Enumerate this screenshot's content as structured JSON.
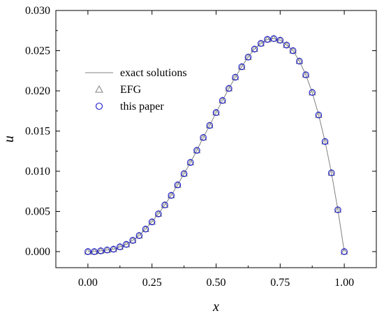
{
  "chart_data": {
    "type": "line",
    "title": "",
    "xlabel": "x",
    "ylabel": "u",
    "xlim": [
      -0.125,
      1.125
    ],
    "ylim": [
      -0.002,
      0.03
    ],
    "x_ticks": [
      0.0,
      0.25,
      0.5,
      0.75,
      1.0
    ],
    "x_tick_labels": [
      "0.00",
      "0.25",
      "0.50",
      "0.75",
      "1.00"
    ],
    "y_ticks": [
      0.0,
      0.005,
      0.01,
      0.015,
      0.02,
      0.025,
      0.03
    ],
    "y_tick_labels": [
      "0.000",
      "0.005",
      "0.010",
      "0.015",
      "0.020",
      "0.025",
      "0.030"
    ],
    "grid": false,
    "legend_position": "upper-left",
    "series": [
      {
        "name": "exact solutions",
        "style": "line",
        "color": "#808080",
        "x": [
          0,
          0.025,
          0.05,
          0.075,
          0.1,
          0.125,
          0.15,
          0.175,
          0.2,
          0.225,
          0.25,
          0.275,
          0.3,
          0.325,
          0.35,
          0.375,
          0.4,
          0.425,
          0.45,
          0.475,
          0.5,
          0.525,
          0.55,
          0.575,
          0.6,
          0.625,
          0.65,
          0.675,
          0.7,
          0.725,
          0.75,
          0.775,
          0.8,
          0.825,
          0.85,
          0.875,
          0.9,
          0.925,
          0.95,
          0.975,
          1.0
        ],
        "y": [
          0,
          0.0,
          0.0001,
          0.0002,
          0.0003,
          0.0006,
          0.0009,
          0.0014,
          0.002,
          0.0028,
          0.0037,
          0.0047,
          0.0058,
          0.007,
          0.0083,
          0.0097,
          0.0111,
          0.0126,
          0.0142,
          0.0157,
          0.0173,
          0.0188,
          0.0203,
          0.0217,
          0.023,
          0.0242,
          0.0252,
          0.0259,
          0.0264,
          0.0265,
          0.0263,
          0.0257,
          0.025,
          0.0237,
          0.022,
          0.0198,
          0.017,
          0.0137,
          0.0098,
          0.0052,
          0.0
        ]
      },
      {
        "name": "EFG",
        "style": "marker-triangle",
        "color": "#808080",
        "x": [
          0,
          0.025,
          0.05,
          0.075,
          0.1,
          0.125,
          0.15,
          0.175,
          0.2,
          0.225,
          0.25,
          0.275,
          0.3,
          0.325,
          0.35,
          0.375,
          0.4,
          0.425,
          0.45,
          0.475,
          0.5,
          0.525,
          0.55,
          0.575,
          0.6,
          0.625,
          0.65,
          0.675,
          0.7,
          0.725,
          0.75,
          0.775,
          0.8,
          0.825,
          0.85,
          0.875,
          0.9,
          0.925,
          0.95,
          0.975,
          1.0
        ],
        "y": [
          0,
          0.0,
          0.0001,
          0.0002,
          0.0003,
          0.0006,
          0.0009,
          0.0014,
          0.002,
          0.0028,
          0.0037,
          0.0047,
          0.0058,
          0.007,
          0.0083,
          0.0097,
          0.0111,
          0.0126,
          0.0142,
          0.0157,
          0.0173,
          0.0188,
          0.0203,
          0.0217,
          0.023,
          0.0242,
          0.0252,
          0.0259,
          0.0264,
          0.0265,
          0.0263,
          0.0257,
          0.025,
          0.0237,
          0.022,
          0.0198,
          0.017,
          0.0137,
          0.0098,
          0.0052,
          0.0
        ]
      },
      {
        "name": "this paper",
        "style": "marker-circle",
        "color": "#1a1acc",
        "x": [
          0,
          0.025,
          0.05,
          0.075,
          0.1,
          0.125,
          0.15,
          0.175,
          0.2,
          0.225,
          0.25,
          0.275,
          0.3,
          0.325,
          0.35,
          0.375,
          0.4,
          0.425,
          0.45,
          0.475,
          0.5,
          0.525,
          0.55,
          0.575,
          0.6,
          0.625,
          0.65,
          0.675,
          0.7,
          0.725,
          0.75,
          0.775,
          0.8,
          0.825,
          0.85,
          0.875,
          0.9,
          0.925,
          0.95,
          0.975,
          1.0
        ],
        "y": [
          0,
          0.0,
          0.0001,
          0.0002,
          0.0003,
          0.0006,
          0.0009,
          0.0014,
          0.002,
          0.0028,
          0.0037,
          0.0047,
          0.0058,
          0.007,
          0.0083,
          0.0097,
          0.0111,
          0.0126,
          0.0142,
          0.0157,
          0.0173,
          0.0188,
          0.0203,
          0.0217,
          0.023,
          0.0242,
          0.0252,
          0.0259,
          0.0264,
          0.0265,
          0.0263,
          0.0257,
          0.025,
          0.0237,
          0.022,
          0.0198,
          0.017,
          0.0137,
          0.0098,
          0.0052,
          0.0
        ]
      }
    ]
  }
}
